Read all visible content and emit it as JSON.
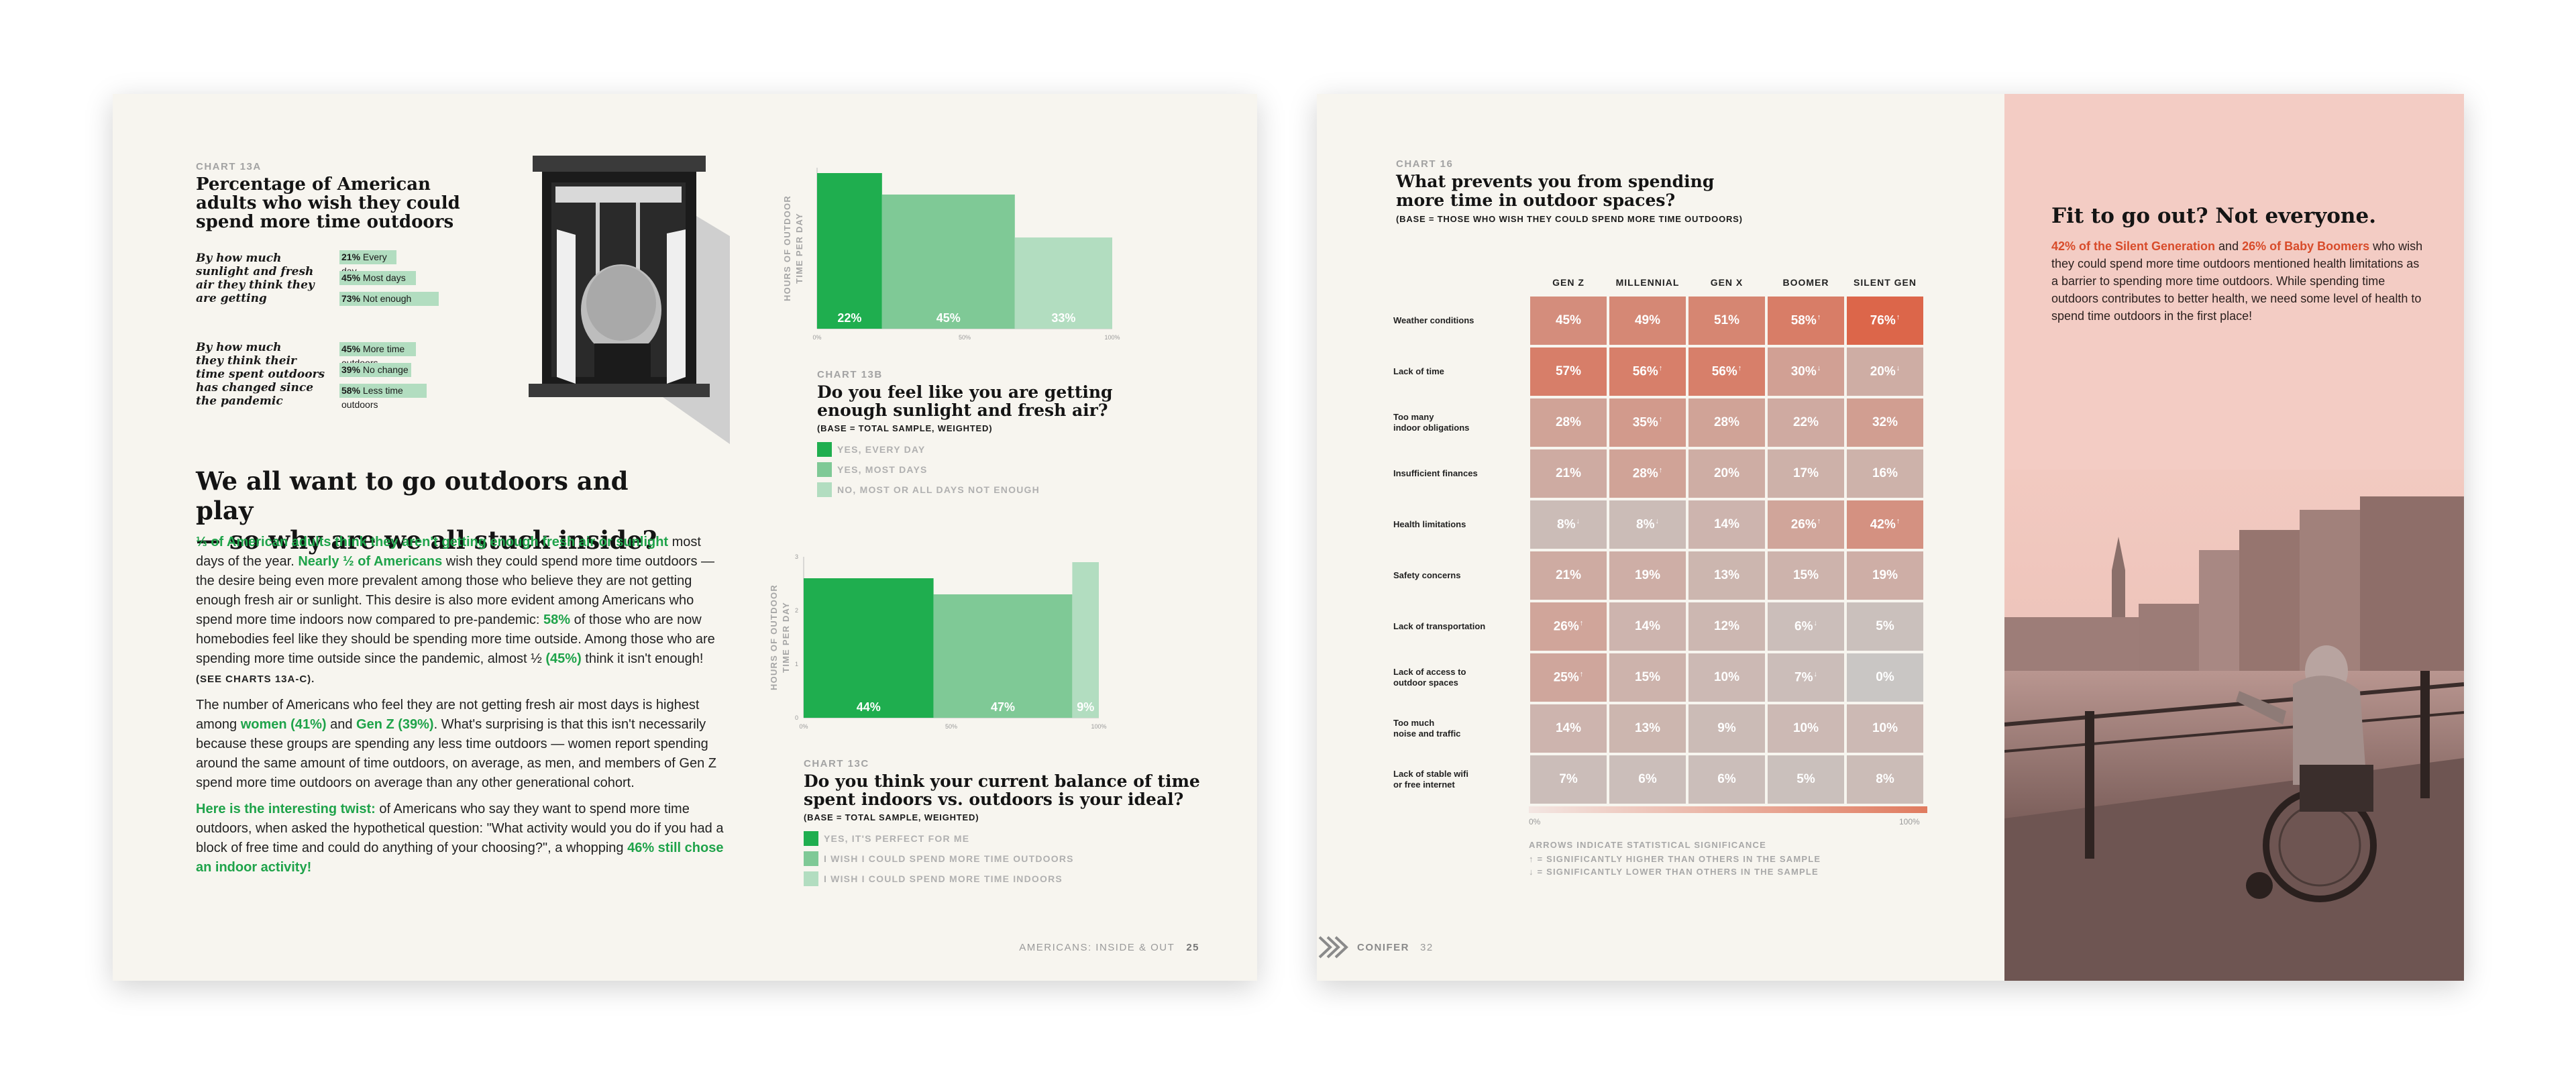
{
  "left_page": {
    "chart13a": {
      "kicker": "CHART 13A",
      "title_line1": "Percentage of American",
      "title_line2": "adults who wish they could",
      "title_line3": "spend more time outdoors",
      "group1": {
        "label_lines": [
          "By how much",
          "sunlight and fresh",
          "air they think they",
          "are getting"
        ],
        "rows": [
          {
            "pct": "21%",
            "text": "Every day",
            "value": 21
          },
          {
            "pct": "45%",
            "text": "Most days",
            "value": 45
          },
          {
            "pct": "73%",
            "text": "Not enough",
            "value": 73
          }
        ]
      },
      "group2": {
        "label_lines": [
          "By how much",
          "they think their",
          "time spent outdoors",
          "has changed since",
          "the pandemic"
        ],
        "rows": [
          {
            "pct": "45%",
            "text": "More time outdoors",
            "value": 45
          },
          {
            "pct": "39%",
            "text": "No change",
            "value": 39
          },
          {
            "pct": "58%",
            "text": "Less time outdoors",
            "value": 58
          }
        ]
      }
    },
    "headline_line1": "We all want to go outdoors and play",
    "headline_line2": "— so why are we all stuck inside?",
    "para1": {
      "g1": "⅓ of American adults think they aren't getting enough fresh air or sunlight",
      "t1": " most days of the year. ",
      "g2": "Nearly ½ of Americans",
      "t2": " wish they could spend more time outdoors — the desire being even more prevalent among those who believe they are not getting enough fresh air or sunlight. This desire is also more evident among Americans who spend more time indoors now compared to pre-pandemic: ",
      "g3": "58%",
      "t3": " of those who are now homebodies feel like they should be spending more time outside. Among those who are spending more time outside since the pandemic, almost ½ ",
      "g4": "(45%)",
      "t4": " think it isn't enough! ",
      "ref": "(SEE CHARTS 13A-C)."
    },
    "para2": {
      "t1": "The number of Americans who feel they are not getting fresh air most days is highest among ",
      "g1": "women (41%)",
      "t2": " and ",
      "g2": "Gen Z (39%)",
      "t3": ". What's surprising is that this isn't necessarily because these groups are spending any less time outdoors — women report spending around the same amount of time outdoors, on average, as men, and members of Gen Z spend more time outdoors on average than any other generational cohort."
    },
    "para3": {
      "g1": "Here is the interesting twist:",
      "t1": " of Americans who say they want to spend more time outdoors, when asked the hypothetical question: \"What activity would you do if you had a block of free time and could do anything of your choosing?\", a whopping ",
      "g2": "46% still chose an indoor activity!"
    },
    "chart13b": {
      "kicker": "CHART 13B",
      "title_line1": "Do you feel like you are getting",
      "title_line2": "enough sunlight and fresh air?",
      "base": "(BASE = TOTAL SAMPLE, WEIGHTED)",
      "ylabel_line1": "HOURS OF OUTDOOR",
      "ylabel_line2": "TIME PER DAY",
      "x_ticks": [
        "0%",
        "50%",
        "100%"
      ],
      "legend": [
        "YES, EVERY DAY",
        "YES, MOST DAYS",
        "NO, MOST OR ALL DAYS NOT ENOUGH"
      ]
    },
    "chart13c": {
      "kicker": "CHART 13C",
      "title_line1": "Do you think your current balance of time",
      "title_line2": "spent indoors vs. outdoors is your ideal?",
      "base": "(BASE = TOTAL SAMPLE, WEIGHTED)",
      "ylabel_line1": "HOURS OF OUTDOOR",
      "ylabel_line2": "TIME PER DAY",
      "x_ticks": [
        "0%",
        "50%",
        "100%"
      ],
      "legend": [
        "YES, IT'S PERFECT FOR ME",
        "I WISH I COULD SPEND MORE TIME OUTDOORS",
        "I WISH I COULD SPEND MORE TIME INDOORS"
      ]
    },
    "footer_title": "AMERICANS: INSIDE & OUT",
    "page_number": "25"
  },
  "right_page": {
    "chart16": {
      "kicker": "CHART 16",
      "title_line1": "What prevents you from spending",
      "title_line2": "more time in outdoor spaces?",
      "base": "(BASE = THOSE WHO WISH THEY COULD SPEND MORE TIME OUTDOORS)",
      "scale_min": "0%",
      "scale_max": "100%",
      "note": "ARROWS INDICATE STATISTICAL SIGNIFICANCE",
      "note_up": "↑ = SIGNIFICANTLY HIGHER THAN OTHERS IN THE SAMPLE",
      "note_down": "↓ = SIGNIFICANTLY LOWER THAN OTHERS IN THE SAMPLE"
    },
    "sidebar": {
      "heading": "Fit to go out? Not everyone.",
      "hl1": "42% of the Silent Generation",
      "t1": " and ",
      "hl2": "26% of Baby Boomers",
      "t2": " who wish they could spend more time outdoors mentioned health limitations as a barrier to spending more time outdoors. While spending time outdoors contributes to better health, we need some level of health to spend time outdoors in the first place!"
    },
    "footer_brand": "CONIFER",
    "page_number": "32"
  },
  "chart_data": [
    {
      "type": "bar",
      "id": "chart13b",
      "title": "Do you feel like you are getting enough sunlight and fresh air?",
      "ylabel": "HOURS OF OUTDOOR TIME PER DAY",
      "x_ticks": [
        "0%",
        "50%",
        "100%"
      ],
      "series": [
        {
          "name": "YES, EVERY DAY",
          "share": 22,
          "label": "22%",
          "height": 2.9,
          "color": "#1fae4f"
        },
        {
          "name": "YES, MOST DAYS",
          "share": 45,
          "label": "45%",
          "height": 2.5,
          "color": "#7fc996"
        },
        {
          "name": "NO, MOST OR ALL DAYS NOT ENOUGH",
          "share": 33,
          "label": "33%",
          "height": 1.7,
          "color": "#b2ddc0"
        }
      ]
    },
    {
      "type": "bar",
      "id": "chart13c",
      "title": "Do you think your current balance of time spent indoors vs. outdoors is your ideal?",
      "ylabel": "HOURS OF OUTDOOR TIME PER DAY",
      "y_ticks": [
        "0",
        "1",
        "2",
        "3"
      ],
      "x_ticks": [
        "0%",
        "50%",
        "100%"
      ],
      "series": [
        {
          "name": "YES, IT'S PERFECT FOR ME",
          "share": 44,
          "label": "44%",
          "height": 2.6,
          "color": "#1fae4f"
        },
        {
          "name": "I WISH I COULD SPEND MORE TIME OUTDOORS",
          "share": 47,
          "label": "47%",
          "height": 2.3,
          "color": "#7fc996"
        },
        {
          "name": "I WISH I COULD SPEND MORE TIME INDOORS",
          "share": 9,
          "label": "9%",
          "height": 2.9,
          "color": "#b2ddc0"
        }
      ]
    },
    {
      "type": "heatmap",
      "id": "chart16",
      "title": "What prevents you from spending more time in outdoor spaces?",
      "columns": [
        "GEN Z",
        "MILLENNIAL",
        "GEN X",
        "BOOMER",
        "SILENT GEN"
      ],
      "rows": [
        {
          "label": [
            "Weather conditions"
          ],
          "values": [
            45,
            49,
            51,
            58,
            76
          ],
          "arrows": [
            "",
            "",
            "",
            "up",
            "up"
          ]
        },
        {
          "label": [
            "Lack of time"
          ],
          "values": [
            57,
            56,
            56,
            30,
            20
          ],
          "arrows": [
            "",
            "up",
            "up",
            "down",
            "down"
          ]
        },
        {
          "label": [
            "Too many",
            "indoor obligations"
          ],
          "values": [
            28,
            35,
            28,
            22,
            32
          ],
          "arrows": [
            "",
            "up",
            "",
            "",
            ""
          ]
        },
        {
          "label": [
            "Insufficient finances"
          ],
          "values": [
            21,
            28,
            20,
            17,
            16
          ],
          "arrows": [
            "",
            "up",
            "",
            "",
            ""
          ]
        },
        {
          "label": [
            "Health limitations"
          ],
          "values": [
            8,
            8,
            14,
            26,
            42
          ],
          "arrows": [
            "down",
            "down",
            "",
            "up",
            "up"
          ]
        },
        {
          "label": [
            "Safety concerns"
          ],
          "values": [
            21,
            19,
            13,
            15,
            19
          ],
          "arrows": [
            "",
            "",
            "",
            "",
            ""
          ]
        },
        {
          "label": [
            "Lack of transportation"
          ],
          "values": [
            26,
            14,
            12,
            6,
            5
          ],
          "arrows": [
            "up",
            "",
            "",
            "down",
            ""
          ]
        },
        {
          "label": [
            "Lack of access to",
            "outdoor spaces"
          ],
          "values": [
            25,
            15,
            10,
            7,
            0
          ],
          "arrows": [
            "up",
            "",
            "",
            "down",
            ""
          ]
        },
        {
          "label": [
            "Too much",
            "noise and traffic"
          ],
          "values": [
            14,
            13,
            9,
            10,
            10
          ],
          "arrows": [
            "",
            "",
            "",
            "",
            ""
          ]
        },
        {
          "label": [
            "Lack of stable wifi",
            "or free internet"
          ],
          "values": [
            7,
            6,
            6,
            5,
            8
          ],
          "arrows": [
            "",
            "",
            "",
            "",
            ""
          ]
        }
      ],
      "scale": [
        0,
        100
      ]
    }
  ]
}
